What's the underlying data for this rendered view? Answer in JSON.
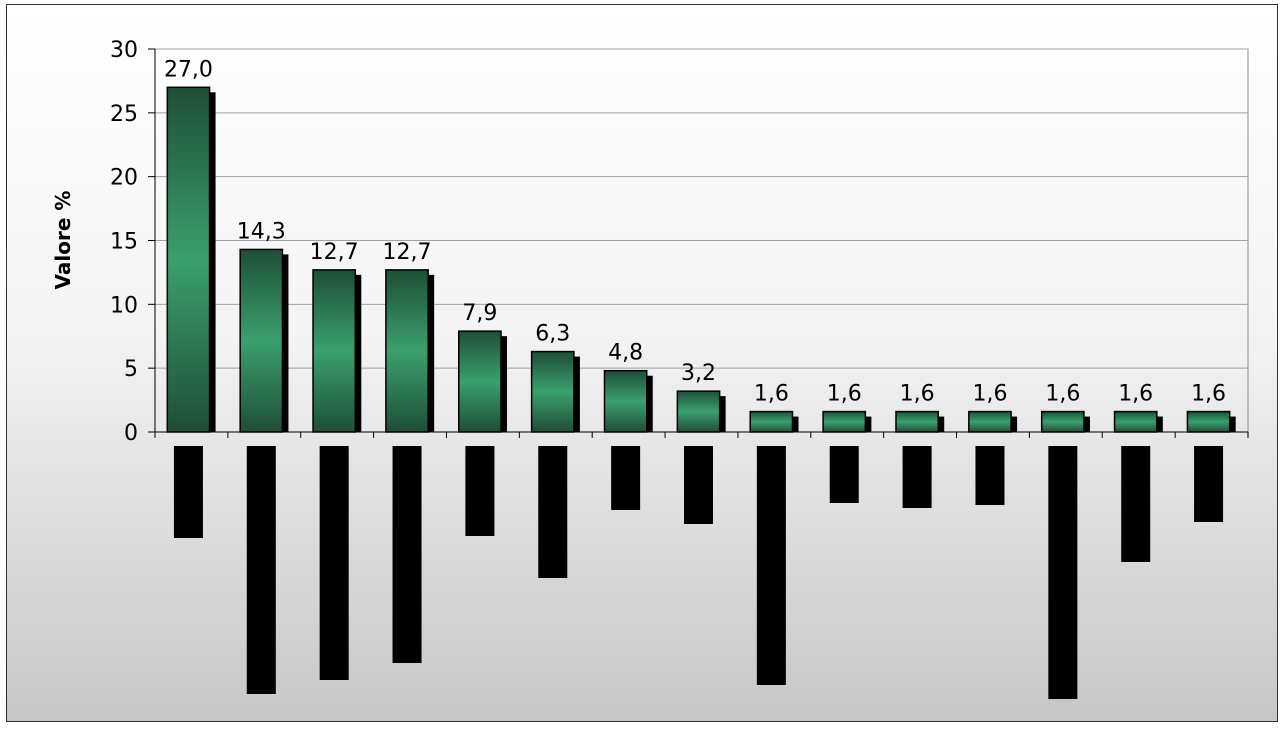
{
  "chart_data": {
    "type": "bar",
    "title": "",
    "xlabel": "",
    "ylabel": "Valore %",
    "ylim": [
      0,
      30
    ],
    "yticks": [
      0,
      5,
      10,
      15,
      20,
      25,
      30
    ],
    "grid": true,
    "legend": "none",
    "categories": [
      "",
      "",
      "",
      "",
      "",
      "",
      "",
      "",
      "",
      "",
      "",
      "",
      "",
      "",
      ""
    ],
    "values": [
      27.0,
      14.3,
      12.7,
      12.7,
      7.9,
      6.3,
      4.8,
      3.2,
      1.6,
      1.6,
      1.6,
      1.6,
      1.6,
      1.6,
      1.6
    ],
    "data_labels": [
      "27,0",
      "14,3",
      "12,7",
      "12,7",
      "7,9",
      "6,3",
      "4,8",
      "3,2",
      "1,6",
      "1,6",
      "1,6",
      "1,6",
      "1,6",
      "1,6",
      "1,6"
    ],
    "colors": {
      "bar_dark": "#1f4e37",
      "bar_light": "#3aa06e",
      "shadow": "#000000",
      "grid": "#a0a0a0",
      "label_block": "#000000"
    }
  }
}
